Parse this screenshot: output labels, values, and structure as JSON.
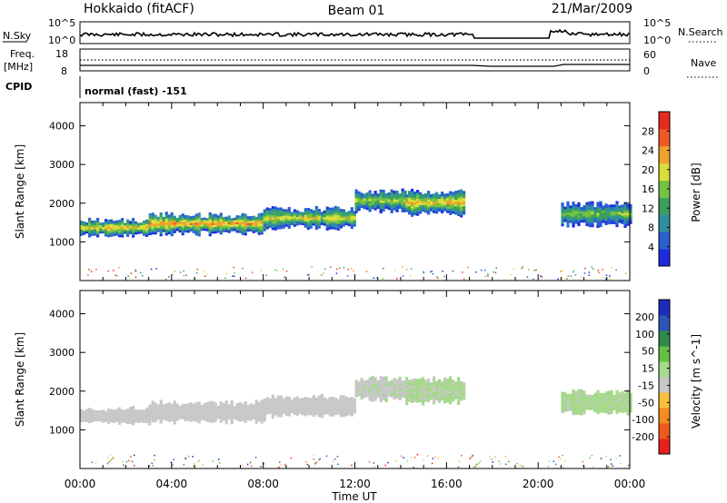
{
  "header": {
    "station": "Hokkaido (fitACF)",
    "beam": "Beam 01",
    "date": "21/Mar/2009"
  },
  "strip": {
    "nsky_label": "N.Sky",
    "nsky_ticks": [
      "10^5",
      "10^0"
    ],
    "nsearch_label": "N.Search",
    "nsearch_ticks": [
      "10^5",
      "10^0"
    ],
    "freq_label": "Freq.",
    "freq_unit": "[MHz]",
    "freq_ticks": [
      "18",
      "8"
    ],
    "nave_label": "Nave",
    "nave_ticks": [
      "60",
      "0"
    ],
    "cpid_label": "CPID",
    "cpid_text": "normal (fast) -151"
  },
  "time_axis": {
    "label": "Time UT",
    "ticks": [
      "00:00",
      "04:00",
      "08:00",
      "12:00",
      "16:00",
      "20:00",
      "00:00"
    ]
  },
  "colors": {
    "power": [
      "#1d2be0",
      "#2a5fd0",
      "#2e8fa0",
      "#3aa060",
      "#74c243",
      "#d9de3a",
      "#f0a12c",
      "#ee5a24",
      "#e52b1c"
    ],
    "velocity": [
      "#e8201c",
      "#f05a1a",
      "#f58a22",
      "#f9be3a",
      "#c8c8c8",
      "#a6d98c",
      "#62c240",
      "#2f8a4c",
      "#3055b8",
      "#1b2bbf"
    ]
  },
  "chart_data": [
    {
      "type": "heatmap",
      "panel": "power",
      "ylabel": "Slant Range [km]",
      "xlabel": "Time UT",
      "x_range_hours": [
        0,
        24
      ],
      "ylim": [
        0,
        4600
      ],
      "yticks": [
        "1000",
        "2000",
        "3000",
        "4000"
      ],
      "colorbar": {
        "label": "Power [dB]",
        "ticks": [
          "4",
          "8",
          "12",
          "16",
          "20",
          "24",
          "28"
        ],
        "range": [
          0,
          30
        ]
      },
      "echo_bands": [
        {
          "t0": 0.0,
          "t1": 3.0,
          "center_km": 1350,
          "width_km": 380,
          "level_db": 20
        },
        {
          "t0": 3.0,
          "t1": 8.0,
          "center_km": 1450,
          "width_km": 500,
          "level_db": 22
        },
        {
          "t0": 8.0,
          "t1": 12.0,
          "center_km": 1600,
          "width_km": 500,
          "level_db": 18
        },
        {
          "t0": 12.0,
          "t1": 14.2,
          "center_km": 2050,
          "width_km": 550,
          "level_db": 16
        },
        {
          "t0": 14.2,
          "t1": 16.8,
          "center_km": 2000,
          "width_km": 600,
          "level_db": 20
        },
        {
          "t0": 21.0,
          "t1": 24.0,
          "center_km": 1700,
          "width_km": 550,
          "level_db": 14
        }
      ]
    },
    {
      "type": "heatmap",
      "panel": "velocity",
      "ylabel": "Slant Range [km]",
      "xlabel": "Time UT",
      "x_range_hours": [
        0,
        24
      ],
      "ylim": [
        0,
        4600
      ],
      "yticks": [
        "1000",
        "2000",
        "3000",
        "4000"
      ],
      "colorbar": {
        "label": "Velocity [m s^-1]",
        "ticks": [
          "200",
          "100",
          "50",
          "15",
          "-15",
          "-50",
          "-100",
          "-200"
        ],
        "range": [
          -250,
          250
        ]
      },
      "echo_bands": [
        {
          "t0": 0.0,
          "t1": 3.0,
          "center_km": 1350,
          "width_km": 380,
          "velocity": 0
        },
        {
          "t0": 3.0,
          "t1": 8.0,
          "center_km": 1450,
          "width_km": 500,
          "velocity": 0
        },
        {
          "t0": 8.0,
          "t1": 12.0,
          "center_km": 1600,
          "width_km": 500,
          "velocity": 0
        },
        {
          "t0": 12.0,
          "t1": 14.2,
          "center_km": 2050,
          "width_km": 550,
          "velocity": 10
        },
        {
          "t0": 14.2,
          "t1": 16.8,
          "center_km": 2000,
          "width_km": 600,
          "velocity": 25
        },
        {
          "t0": 21.0,
          "t1": 24.0,
          "center_km": 1700,
          "width_km": 550,
          "velocity": 30
        }
      ]
    }
  ]
}
